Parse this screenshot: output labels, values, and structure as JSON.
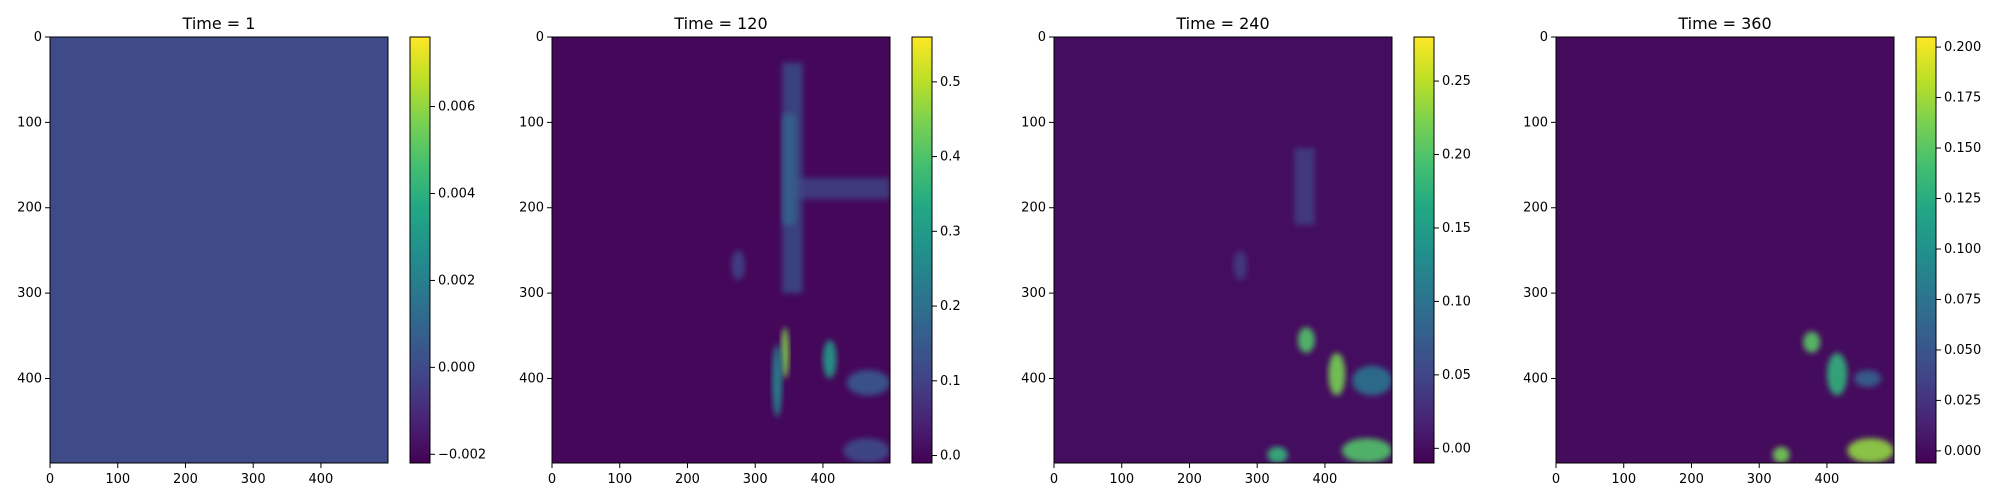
{
  "chart_data": [
    {
      "type": "heatmap",
      "title": "Time = 1",
      "xticks": [
        0,
        100,
        200,
        300,
        400
      ],
      "yticks": [
        0,
        100,
        200,
        300,
        400
      ],
      "xlim": [
        0,
        499
      ],
      "ylim": [
        499,
        0
      ],
      "colormap": "viridis",
      "colorbar": {
        "min": -0.0022,
        "max": 0.0076,
        "ticks": [
          -0.002,
          0.0,
          0.002,
          0.004,
          0.006
        ],
        "tick_labels": [
          "−0.002",
          "0.000",
          "0.002",
          "0.004",
          "0.006"
        ]
      },
      "background_value": 0.0,
      "features": []
    },
    {
      "type": "heatmap",
      "title": "Time = 120",
      "xticks": [
        0,
        100,
        200,
        300,
        400
      ],
      "yticks": [
        0,
        100,
        200,
        300,
        400
      ],
      "xlim": [
        0,
        499
      ],
      "ylim": [
        499,
        0
      ],
      "colormap": "viridis",
      "colorbar": {
        "min": -0.01,
        "max": 0.56,
        "ticks": [
          0.0,
          0.1,
          0.2,
          0.3,
          0.4,
          0.5
        ],
        "tick_labels": [
          "0.0",
          "0.1",
          "0.2",
          "0.3",
          "0.4",
          "0.5"
        ]
      },
      "background_value": 0.0,
      "features": [
        {
          "kind": "band",
          "x": [
            340,
            370
          ],
          "y": [
            30,
            300
          ],
          "value": 0.14
        },
        {
          "kind": "band",
          "x": [
            355,
            499
          ],
          "y": [
            165,
            190
          ],
          "value": 0.12
        },
        {
          "kind": "band",
          "x": [
            340,
            360
          ],
          "y": [
            90,
            220
          ],
          "value": 0.18
        },
        {
          "kind": "blob",
          "x": [
            338,
            350
          ],
          "y": [
            340,
            400
          ],
          "value": 0.45
        },
        {
          "kind": "blob",
          "x": [
            325,
            340
          ],
          "y": [
            360,
            445
          ],
          "value": 0.25
        },
        {
          "kind": "blob",
          "x": [
            400,
            420
          ],
          "y": [
            355,
            400
          ],
          "value": 0.3
        },
        {
          "kind": "blob",
          "x": [
            435,
            499
          ],
          "y": [
            390,
            420
          ],
          "value": 0.15
        },
        {
          "kind": "blob",
          "x": [
            430,
            499
          ],
          "y": [
            470,
            499
          ],
          "value": 0.12
        },
        {
          "kind": "blob",
          "x": [
            265,
            285
          ],
          "y": [
            250,
            285
          ],
          "value": 0.1
        }
      ]
    },
    {
      "type": "heatmap",
      "title": "Time = 240",
      "xticks": [
        0,
        100,
        200,
        300,
        400
      ],
      "yticks": [
        0,
        100,
        200,
        300,
        400
      ],
      "xlim": [
        0,
        499
      ],
      "ylim": [
        499,
        0
      ],
      "colormap": "viridis",
      "colorbar": {
        "min": -0.01,
        "max": 0.28,
        "ticks": [
          0.0,
          0.05,
          0.1,
          0.15,
          0.2,
          0.25
        ],
        "tick_labels": [
          "0.00",
          "0.05",
          "0.10",
          "0.15",
          "0.20",
          "0.25"
        ]
      },
      "background_value": 0.0,
      "features": [
        {
          "kind": "band",
          "x": [
            355,
            385
          ],
          "y": [
            130,
            220
          ],
          "value": 0.05
        },
        {
          "kind": "blob",
          "x": [
            360,
            385
          ],
          "y": [
            340,
            370
          ],
          "value": 0.2
        },
        {
          "kind": "blob",
          "x": [
            405,
            430
          ],
          "y": [
            370,
            420
          ],
          "value": 0.22
        },
        {
          "kind": "blob",
          "x": [
            440,
            499
          ],
          "y": [
            385,
            420
          ],
          "value": 0.1
        },
        {
          "kind": "blob",
          "x": [
            425,
            499
          ],
          "y": [
            470,
            499
          ],
          "value": 0.2
        },
        {
          "kind": "blob",
          "x": [
            315,
            345
          ],
          "y": [
            480,
            499
          ],
          "value": 0.18
        },
        {
          "kind": "blob",
          "x": [
            265,
            285
          ],
          "y": [
            250,
            285
          ],
          "value": 0.04
        }
      ]
    },
    {
      "type": "heatmap",
      "title": "Time = 360",
      "xticks": [
        0,
        100,
        200,
        300,
        400
      ],
      "yticks": [
        0,
        100,
        200,
        300,
        400
      ],
      "xlim": [
        0,
        499
      ],
      "ylim": [
        499,
        0
      ],
      "colormap": "viridis",
      "colorbar": {
        "min": -0.006,
        "max": 0.205,
        "ticks": [
          0.0,
          0.025,
          0.05,
          0.075,
          0.1,
          0.125,
          0.15,
          0.175,
          0.2
        ],
        "tick_labels": [
          "0.000",
          "0.025",
          "0.050",
          "0.075",
          "0.100",
          "0.125",
          "0.150",
          "0.175",
          "0.200"
        ]
      },
      "background_value": 0.0,
      "features": [
        {
          "kind": "blob",
          "x": [
            365,
            390
          ],
          "y": [
            345,
            370
          ],
          "value": 0.15
        },
        {
          "kind": "blob",
          "x": [
            400,
            430
          ],
          "y": [
            370,
            420
          ],
          "value": 0.13
        },
        {
          "kind": "blob",
          "x": [
            430,
            499
          ],
          "y": [
            470,
            499
          ],
          "value": 0.17
        },
        {
          "kind": "blob",
          "x": [
            320,
            345
          ],
          "y": [
            480,
            499
          ],
          "value": 0.16
        },
        {
          "kind": "blob",
          "x": [
            440,
            480
          ],
          "y": [
            390,
            410
          ],
          "value": 0.06
        }
      ]
    }
  ]
}
